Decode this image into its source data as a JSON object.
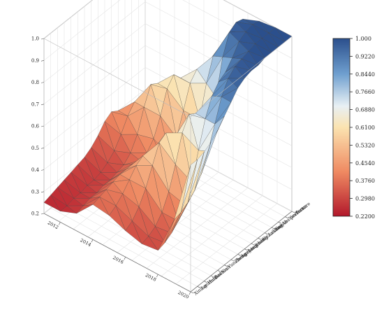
{
  "chart_data": {
    "type": "surface3d",
    "title": "",
    "xlabel": "",
    "ylabel": "",
    "zlabel": "",
    "x_ticks": [
      "2012",
      "2014",
      "2016",
      "2018",
      "2020"
    ],
    "y_ticks": [
      "Yanan",
      "Yinchuan",
      "Aba prefecture",
      "Baiyin",
      "Lvliang",
      "Shizuishan",
      "Jinan",
      "Liaocheng",
      "Luoyang",
      "Zhengzhou",
      "Yuncheng",
      "Xian",
      "Baotou",
      "Hohhot",
      "Lanzhou",
      "Xining"
    ],
    "z_ticks": [
      "0.2",
      "0.3",
      "0.4",
      "0.5",
      "0.6",
      "0.7",
      "0.8",
      "0.9",
      "1.0"
    ],
    "zlim": [
      0.2,
      1.0
    ],
    "colorbar_ticks": [
      "1.000",
      "0.9220",
      "0.8440",
      "0.7660",
      "0.6880",
      "0.6100",
      "0.5320",
      "0.4540",
      "0.3760",
      "0.2980",
      "0.2200"
    ],
    "colorbar_range": [
      0.22,
      1.0
    ],
    "colors": {
      "low": "#b2182b",
      "mid": "#f7f4ea",
      "high": "#2b4f8c"
    },
    "series": [
      {
        "x": 2011,
        "values": [
          0.32,
          0.34,
          0.36,
          0.38,
          0.4,
          0.42,
          0.4,
          0.36,
          0.33,
          0.31,
          0.3,
          0.29,
          0.28,
          0.27,
          0.26,
          0.25
        ]
      },
      {
        "x": 2012,
        "values": [
          0.36,
          0.38,
          0.42,
          0.46,
          0.48,
          0.44,
          0.38,
          0.33,
          0.3,
          0.28,
          0.27,
          0.27,
          0.26,
          0.26,
          0.25,
          0.25
        ]
      },
      {
        "x": 2013,
        "values": [
          0.42,
          0.46,
          0.52,
          0.58,
          0.6,
          0.52,
          0.42,
          0.36,
          0.33,
          0.32,
          0.31,
          0.31,
          0.3,
          0.3,
          0.29,
          0.28
        ]
      },
      {
        "x": 2014,
        "values": [
          0.5,
          0.56,
          0.62,
          0.66,
          0.62,
          0.52,
          0.44,
          0.4,
          0.39,
          0.4,
          0.4,
          0.4,
          0.39,
          0.38,
          0.37,
          0.36
        ]
      },
      {
        "x": 2015,
        "values": [
          0.62,
          0.68,
          0.7,
          0.66,
          0.56,
          0.46,
          0.4,
          0.4,
          0.44,
          0.48,
          0.5,
          0.48,
          0.44,
          0.4,
          0.37,
          0.35
        ]
      },
      {
        "x": 2016,
        "values": [
          0.8,
          0.82,
          0.8,
          0.7,
          0.56,
          0.48,
          0.46,
          0.5,
          0.56,
          0.62,
          0.6,
          0.52,
          0.44,
          0.38,
          0.34,
          0.32
        ]
      },
      {
        "x": 2017,
        "values": [
          0.96,
          0.97,
          0.95,
          0.86,
          0.7,
          0.6,
          0.62,
          0.7,
          0.72,
          0.66,
          0.54,
          0.44,
          0.37,
          0.33,
          0.31,
          0.3
        ]
      },
      {
        "x": 2018,
        "values": [
          0.99,
          1.0,
          0.99,
          0.97,
          0.92,
          0.88,
          0.86,
          0.82,
          0.74,
          0.62,
          0.5,
          0.42,
          0.37,
          0.34,
          0.32,
          0.31
        ]
      },
      {
        "x": 2019,
        "values": [
          1.0,
          1.0,
          1.0,
          1.0,
          0.99,
          0.98,
          0.97,
          0.94,
          0.88,
          0.78,
          0.68,
          0.6,
          0.55,
          0.52,
          0.5,
          0.49
        ]
      },
      {
        "x": 2020,
        "values": [
          1.0,
          1.0,
          1.0,
          1.0,
          1.0,
          0.99,
          0.99,
          0.98,
          0.96,
          0.92,
          0.88,
          0.84,
          0.81,
          0.79,
          0.78,
          0.78
        ]
      }
    ],
    "grid": true,
    "legend": "colorbar-right"
  }
}
